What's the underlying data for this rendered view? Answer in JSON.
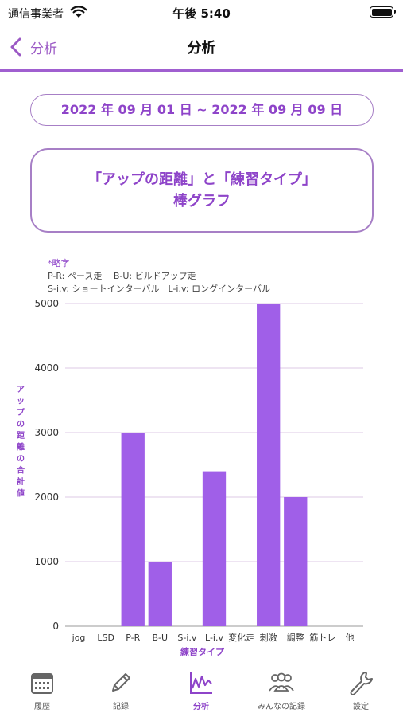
{
  "status": {
    "carrier": "通信事業者",
    "time": "午後 5:40",
    "battery_level": 1.0
  },
  "nav": {
    "back_label": "分析",
    "title": "分析"
  },
  "date_range": "2022 年 09 月 01 日 ~ 2022 年 09 月 09 日",
  "chart_title": {
    "line1": "「アップの距離」と「練習タイプ」",
    "line2": "棒グラフ"
  },
  "notes": {
    "heading": "*略字",
    "line1": "P-R: ペース走　 B-U: ビルドアップ走",
    "line2": "S-i.v: ショートインターバル　L-i.v: ロングインターバル"
  },
  "chart_data": {
    "type": "bar",
    "categories": [
      "jog",
      "LSD",
      "P-R",
      "B-U",
      "S-i.v",
      "L-i.v",
      "変化走",
      "刺激",
      "調整",
      "筋トレ",
      "他"
    ],
    "values": [
      0,
      0,
      3000,
      1000,
      0,
      2400,
      0,
      5000,
      2000,
      0,
      0
    ],
    "ylim": [
      0,
      5000
    ],
    "yticks": [
      0,
      1000,
      2000,
      3000,
      4000,
      5000
    ],
    "xlabel": "練習タイプ",
    "ylabel": "アップの距離の合計値",
    "grid": true,
    "bar_color": "#a05fe8",
    "grid_color": "#dcc8e6",
    "axis_label_color": "#8e44c9"
  },
  "tabs": [
    {
      "label": "履歴",
      "icon": "calendar-icon",
      "active": false
    },
    {
      "label": "記録",
      "icon": "pencil-icon",
      "active": false
    },
    {
      "label": "分析",
      "icon": "line-chart-icon",
      "active": true
    },
    {
      "label": "みんなの記録",
      "icon": "people-icon",
      "active": false
    },
    {
      "label": "設定",
      "icon": "wrench-icon",
      "active": false
    }
  ],
  "colors": {
    "accent": "#8e44c9",
    "divider": "#a05fd0",
    "border": "#a77fc6"
  }
}
